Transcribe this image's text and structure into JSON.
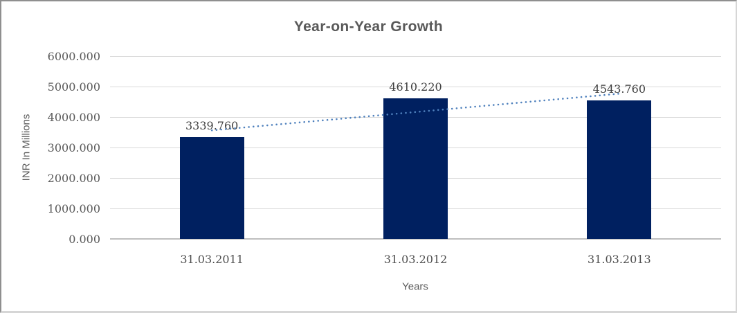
{
  "chart_data": {
    "type": "bar",
    "title": "Year-on-Year Growth",
    "xlabel": "Years",
    "ylabel": "INR In Millions",
    "categories": [
      "31.03.2011",
      "31.03.2012",
      "31.03.2013"
    ],
    "values": [
      3339.76,
      4610.22,
      4543.76
    ],
    "value_labels": [
      "3339.760",
      "4610.220",
      "4543.760"
    ],
    "y_ticks": [
      0,
      1000,
      2000,
      3000,
      4000,
      5000,
      6000
    ],
    "y_tick_labels": [
      "0.000",
      "1000.000",
      "2000.000",
      "3000.000",
      "4000.000",
      "5000.000",
      "6000.000"
    ],
    "ylim": [
      0,
      6000
    ],
    "grid": true,
    "legend": false,
    "trendline": {
      "type": "linear",
      "style": "dotted",
      "start_value": 3562.6,
      "end_value": 4766.6
    },
    "colors": {
      "bar": "#002060",
      "trendline": "#4f81bd",
      "gridline": "#d9d9d9",
      "axis_line": "#bfbfbf",
      "title_text": "#595959",
      "axis_title_text": "#595959",
      "tick_text": "#595959",
      "data_label_text": "#404040"
    }
  }
}
